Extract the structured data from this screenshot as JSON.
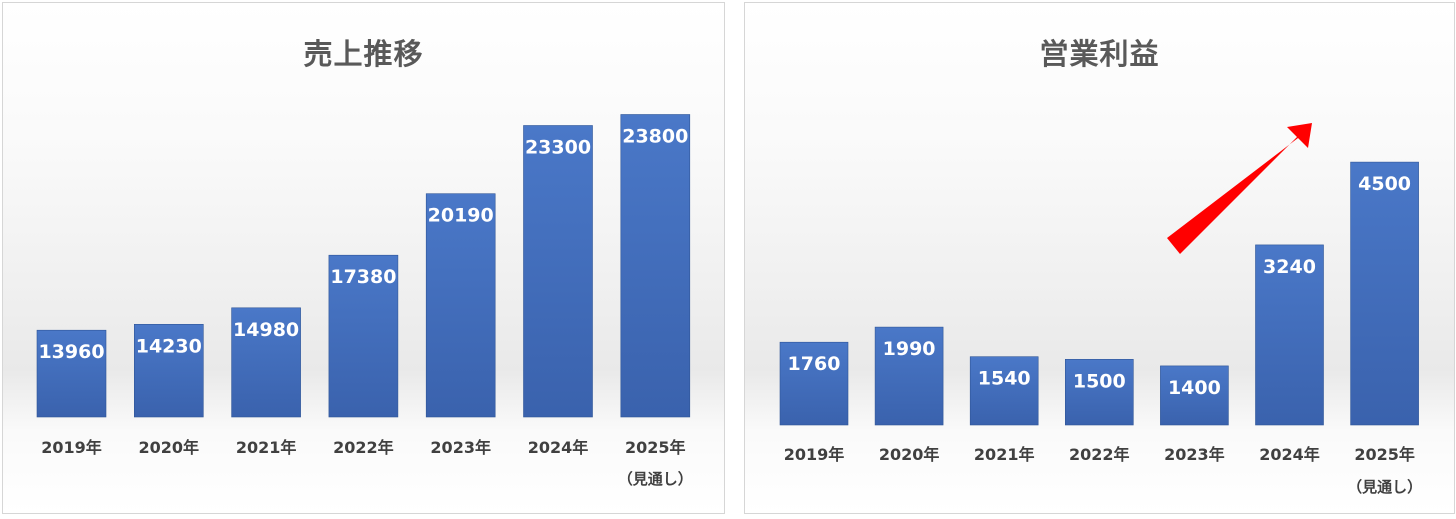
{
  "chart_data": [
    {
      "type": "bar",
      "title": "売上推移",
      "categories": [
        "2019年",
        "2020年",
        "2021年",
        "2022年",
        "2023年",
        "2024年",
        "2025年"
      ],
      "category_notes": [
        "",
        "",
        "",
        "",
        "",
        "",
        "（見通し）"
      ],
      "values": [
        13960,
        14230,
        14980,
        17380,
        20190,
        23300,
        23800
      ],
      "ylim": [
        10000,
        24600
      ],
      "grid": false,
      "legend": "none",
      "bar_color": "#4472c4"
    },
    {
      "type": "bar",
      "title": "営業利益",
      "categories": [
        "2019年",
        "2020年",
        "2021年",
        "2022年",
        "2023年",
        "2024年",
        "2025年"
      ],
      "category_notes": [
        "",
        "",
        "",
        "",
        "",
        "",
        "（見通し）"
      ],
      "values": [
        1760,
        1990,
        1540,
        1500,
        1400,
        3240,
        4500
      ],
      "ylim": [
        500,
        5400
      ],
      "grid": false,
      "legend": "none",
      "bar_color": "#4472c4",
      "annotation": "red-up-arrow"
    }
  ],
  "colors": {
    "bar": "#4472c4",
    "arrow": "#ff0000",
    "title": "#595959",
    "axis_text": "#404040"
  }
}
